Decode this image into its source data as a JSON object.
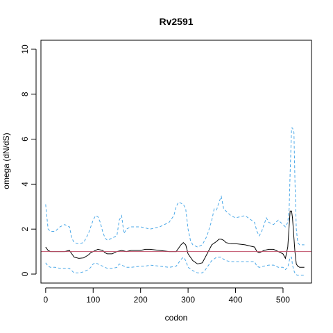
{
  "chart_data": {
    "type": "line",
    "title": "Rv2591",
    "xlabel": "codon",
    "ylabel": "omega (dN/dS)",
    "xlim": [
      -10,
      560
    ],
    "ylim": [
      -0.4,
      10.4
    ],
    "x_ticks": [
      0,
      100,
      200,
      300,
      400,
      500
    ],
    "y_ticks": [
      0,
      2,
      4,
      6,
      8,
      10
    ],
    "reference_line": {
      "y": 1,
      "color": "#c0506a"
    },
    "grid": false,
    "series": [
      {
        "role": "estimate",
        "color": "#000000",
        "dash": "solid",
        "x": [
          0,
          5,
          10,
          20,
          30,
          40,
          50,
          55,
          60,
          70,
          80,
          90,
          95,
          100,
          110,
          120,
          125,
          130,
          140,
          150,
          160,
          170,
          180,
          200,
          210,
          220,
          240,
          260,
          275,
          285,
          290,
          295,
          300,
          310,
          320,
          330,
          335,
          340,
          350,
          360,
          365,
          370,
          375,
          380,
          390,
          400,
          420,
          440,
          445,
          450,
          460,
          470,
          480,
          490,
          500,
          505,
          510,
          515,
          518,
          520,
          525,
          528,
          531,
          535,
          540,
          545
        ],
        "y": [
          1.2,
          1.05,
          1.0,
          1.0,
          1.0,
          1.0,
          1.05,
          0.9,
          0.75,
          0.7,
          0.72,
          0.85,
          0.95,
          1.0,
          1.1,
          1.05,
          0.95,
          0.9,
          0.9,
          1.0,
          1.05,
          1.0,
          1.05,
          1.05,
          1.1,
          1.1,
          1.05,
          1.0,
          1.0,
          1.3,
          1.4,
          1.3,
          0.9,
          0.6,
          0.45,
          0.5,
          0.7,
          0.9,
          1.3,
          1.45,
          1.55,
          1.55,
          1.5,
          1.4,
          1.35,
          1.35,
          1.3,
          1.2,
          1.0,
          0.95,
          1.05,
          1.1,
          1.1,
          1.0,
          0.9,
          0.7,
          1.2,
          2.8,
          2.8,
          2.5,
          1.0,
          0.45,
          0.35,
          0.3,
          0.3,
          0.3
        ]
      },
      {
        "role": "upper bound",
        "color": "#4aa8e8",
        "dash": "dashed",
        "x": [
          0,
          5,
          10,
          20,
          30,
          40,
          50,
          55,
          60,
          70,
          80,
          90,
          95,
          100,
          105,
          110,
          115,
          120,
          125,
          130,
          140,
          150,
          155,
          160,
          165,
          170,
          180,
          200,
          220,
          240,
          260,
          270,
          275,
          280,
          290,
          295,
          300,
          305,
          310,
          320,
          330,
          340,
          350,
          355,
          360,
          365,
          370,
          375,
          380,
          390,
          400,
          420,
          440,
          445,
          450,
          455,
          460,
          465,
          470,
          480,
          490,
          500,
          505,
          510,
          513,
          515,
          518,
          520,
          523,
          525,
          528,
          531,
          535,
          540,
          545
        ],
        "y": [
          3.1,
          2.0,
          1.9,
          1.9,
          2.1,
          2.2,
          2.1,
          1.6,
          1.4,
          1.35,
          1.4,
          1.8,
          2.1,
          2.4,
          2.6,
          2.55,
          2.3,
          1.9,
          1.6,
          1.5,
          1.6,
          1.7,
          2.4,
          2.6,
          1.8,
          2.0,
          2.1,
          2.1,
          2.0,
          2.1,
          2.3,
          2.6,
          3.0,
          3.2,
          3.1,
          2.9,
          2.0,
          1.5,
          1.3,
          1.2,
          1.3,
          1.7,
          2.4,
          2.9,
          2.85,
          3.2,
          3.45,
          2.9,
          2.8,
          2.6,
          2.5,
          2.6,
          2.3,
          1.9,
          1.7,
          1.9,
          2.2,
          2.5,
          2.3,
          2.2,
          2.4,
          2.2,
          2.1,
          2.3,
          2.9,
          4.5,
          6.5,
          6.5,
          6.3,
          4.2,
          2.0,
          1.4,
          1.3,
          1.3,
          1.3
        ]
      },
      {
        "role": "lower bound",
        "color": "#4aa8e8",
        "dash": "dashed",
        "x": [
          0,
          5,
          10,
          20,
          30,
          40,
          50,
          55,
          60,
          70,
          80,
          90,
          95,
          100,
          105,
          110,
          120,
          125,
          130,
          140,
          150,
          155,
          160,
          170,
          180,
          200,
          210,
          220,
          240,
          260,
          275,
          285,
          290,
          295,
          300,
          310,
          320,
          330,
          335,
          340,
          350,
          360,
          370,
          375,
          380,
          390,
          400,
          420,
          440,
          445,
          450,
          460,
          470,
          480,
          490,
          500,
          505,
          510,
          515,
          518,
          520,
          523,
          526,
          530,
          535,
          540,
          545
        ],
        "y": [
          0.5,
          0.35,
          0.3,
          0.3,
          0.25,
          0.25,
          0.25,
          0.15,
          0.05,
          0.05,
          0.1,
          0.2,
          0.3,
          0.45,
          0.5,
          0.45,
          0.35,
          0.3,
          0.25,
          0.25,
          0.3,
          0.45,
          0.4,
          0.3,
          0.3,
          0.35,
          0.35,
          0.4,
          0.35,
          0.3,
          0.35,
          0.65,
          0.75,
          0.6,
          0.3,
          0.15,
          0.05,
          0.05,
          0.15,
          0.3,
          0.6,
          0.75,
          0.75,
          0.65,
          0.6,
          0.55,
          0.55,
          0.55,
          0.55,
          0.35,
          0.3,
          0.35,
          0.4,
          0.4,
          0.3,
          0.3,
          0.2,
          0.3,
          0.75,
          0.75,
          0.4,
          0.15,
          0.0,
          -0.05,
          -0.05,
          -0.05,
          -0.05
        ]
      }
    ]
  }
}
